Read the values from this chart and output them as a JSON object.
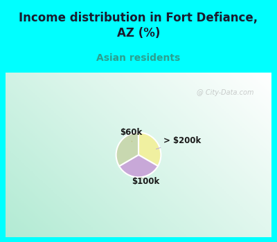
{
  "title": "Income distribution in Fort Defiance,\nAZ (%)",
  "subtitle": "Asian residents",
  "title_color": "#1a1a2e",
  "subtitle_color": "#2aa090",
  "title_bg_color": "#00ffff",
  "watermark": "City-Data.com",
  "slices": [
    {
      "label": "$60k",
      "value": 33.3,
      "color": "#f0f0a0"
    },
    {
      "label": "> $200k",
      "value": 33.3,
      "color": "#c8a8d8"
    },
    {
      "label": "$100k",
      "value": 33.4,
      "color": "#c8d8b0"
    }
  ],
  "startangle": 90,
  "figsize": [
    4.0,
    3.5
  ],
  "dpi": 100
}
